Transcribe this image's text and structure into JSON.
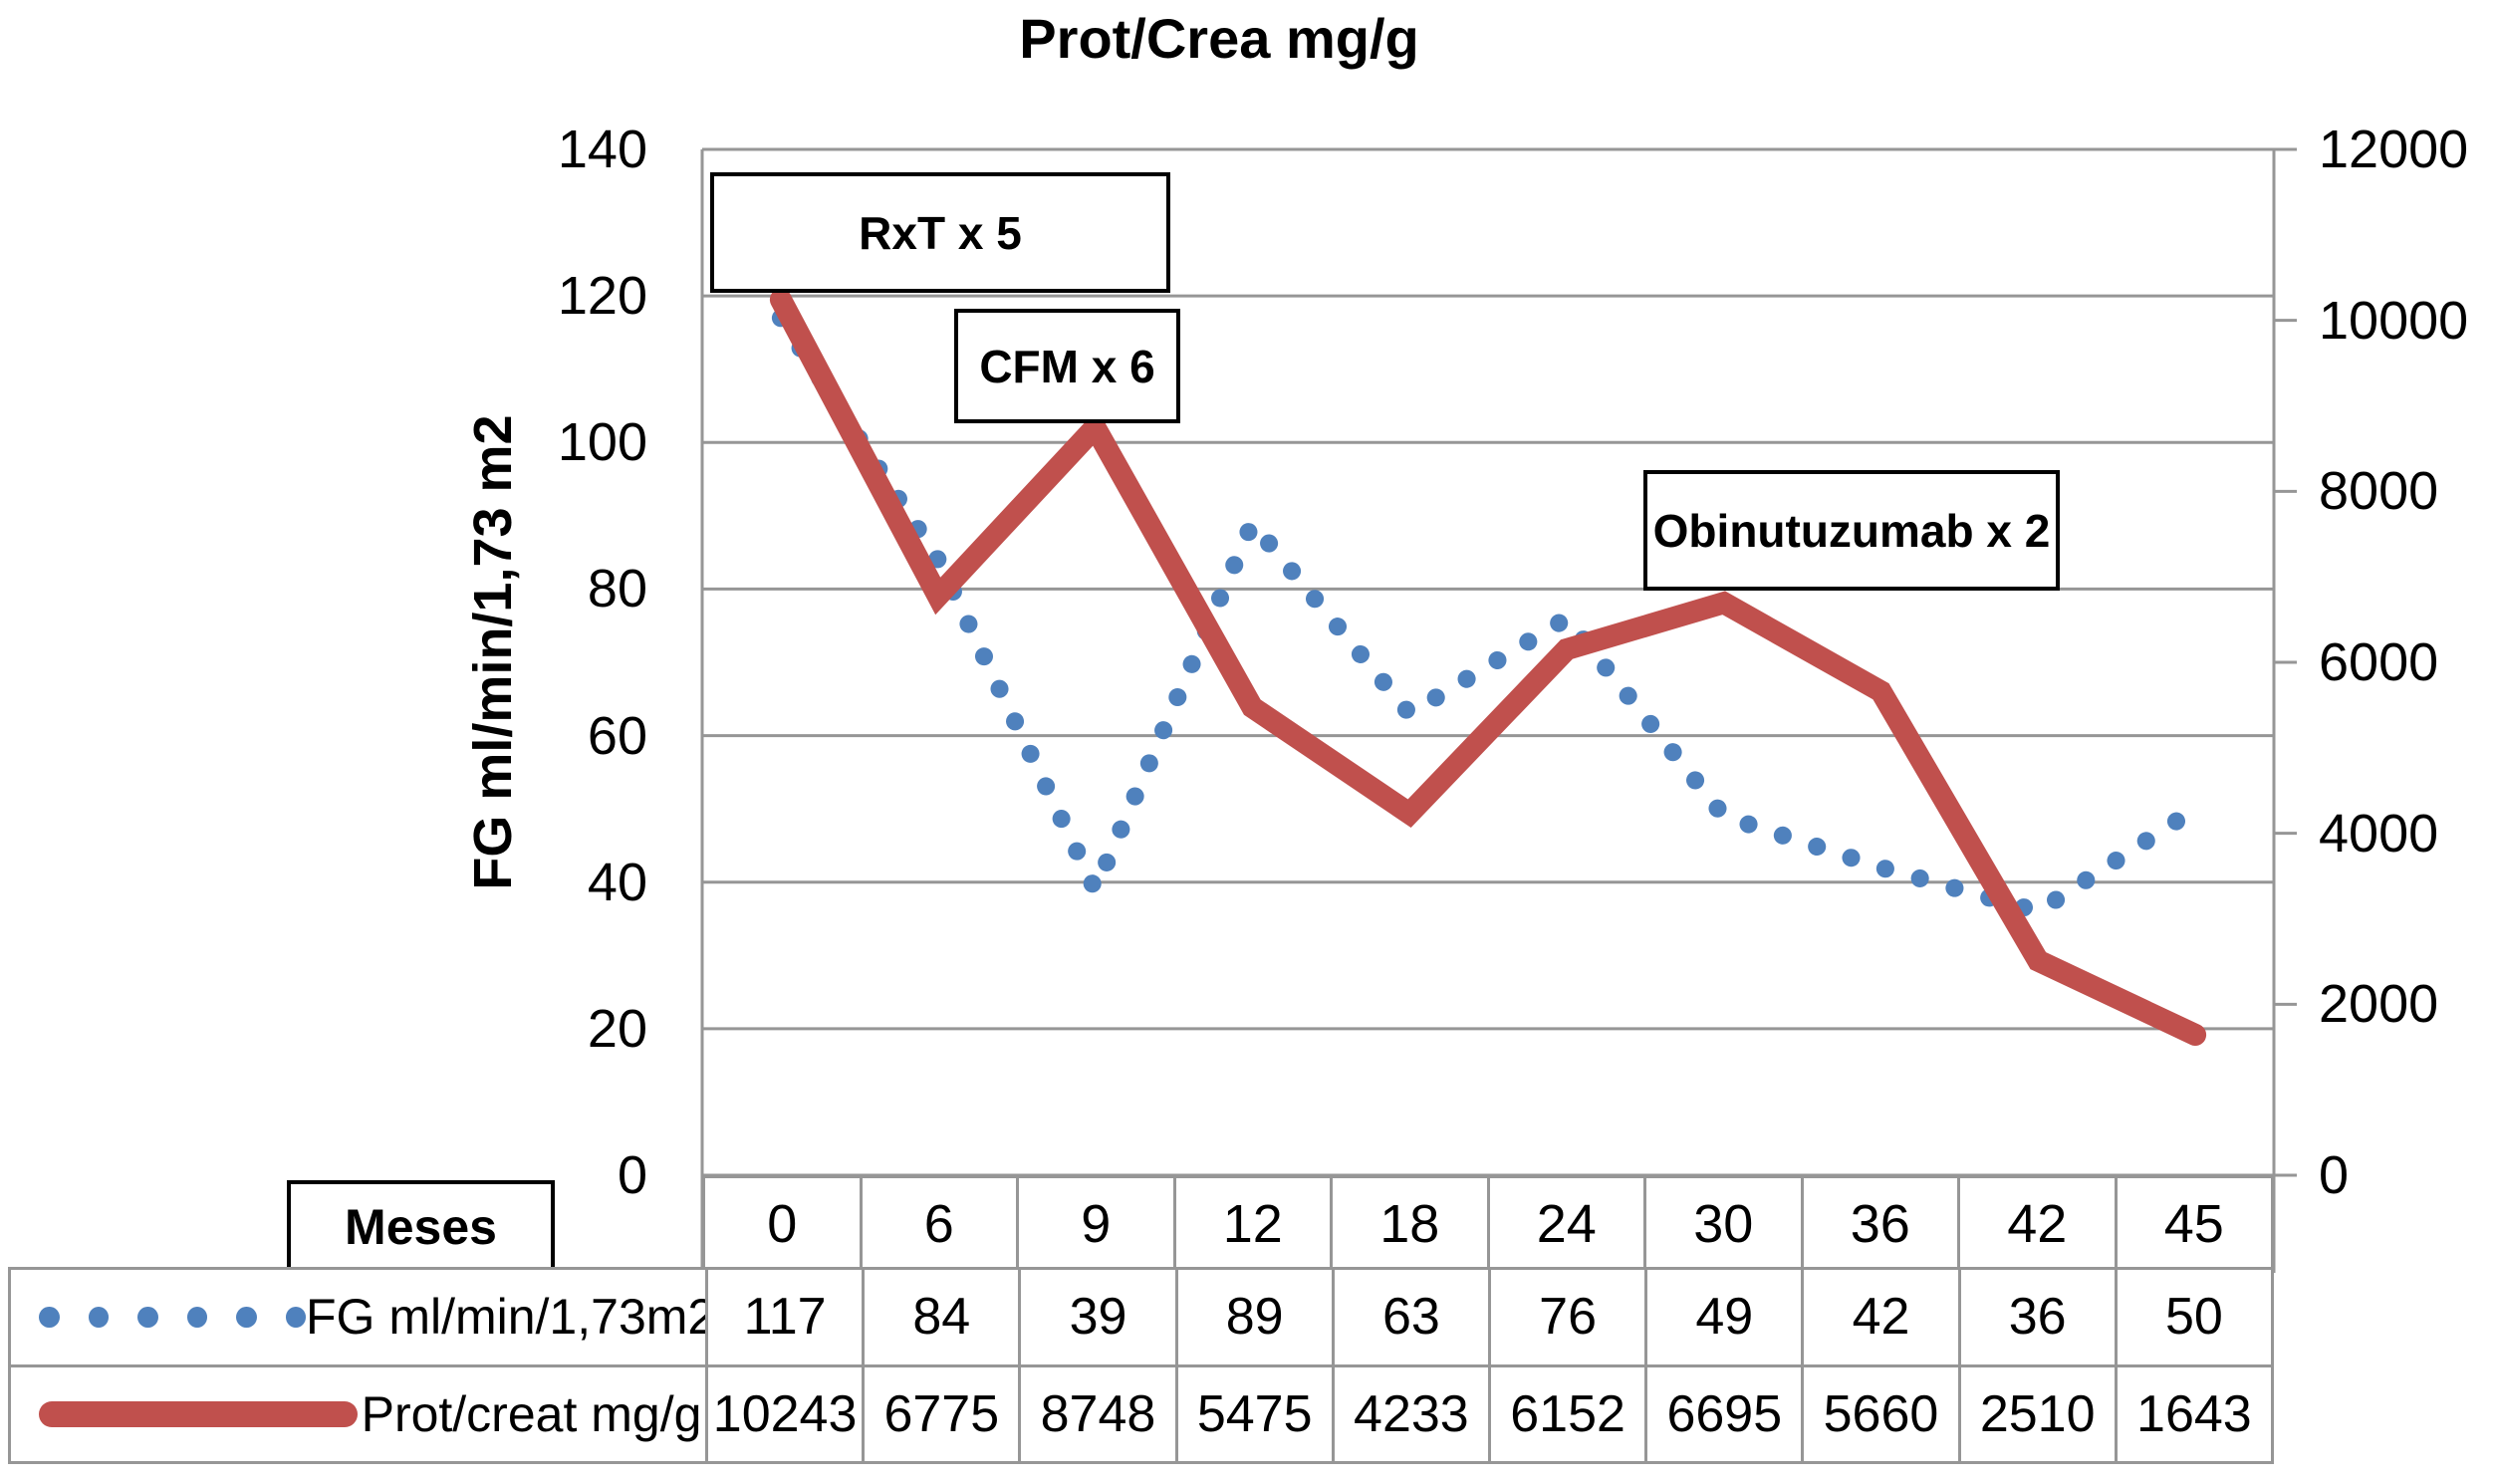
{
  "title": "Prot/Crea mg/g",
  "colors": {
    "fg_series": "#4F81BD",
    "prot_series": "#C0504D",
    "gridline": "#969696",
    "annotation_border": "#000000"
  },
  "chart_data": {
    "type": "line",
    "title": "Prot/Crea mg/g",
    "categories_header": "Meses",
    "categories": [
      0,
      6,
      9,
      12,
      18,
      24,
      30,
      36,
      42,
      45
    ],
    "series": [
      {
        "name": "FG ml/min/1,73m2",
        "axis": "left",
        "style": "dotted",
        "color": "#4F81BD",
        "values": [
          117,
          84,
          39,
          89,
          63,
          76,
          49,
          42,
          36,
          50
        ]
      },
      {
        "name": "Prot/creat mg/g",
        "axis": "right",
        "style": "solid",
        "color": "#C0504D",
        "values": [
          10243,
          6775,
          8748,
          5475,
          4233,
          6152,
          6695,
          5660,
          2510,
          1643
        ]
      }
    ],
    "left_axis": {
      "label": "FG ml/min/1,73 m2",
      "min": 0,
      "max": 140,
      "ticks": [
        0,
        20,
        40,
        60,
        80,
        100,
        120,
        140
      ]
    },
    "right_axis": {
      "label": "",
      "min": 0,
      "max": 12000,
      "ticks": [
        0,
        2000,
        4000,
        6000,
        8000,
        10000,
        12000
      ]
    },
    "annotations": [
      {
        "label": "RxT x 5"
      },
      {
        "label": "CFM x 6"
      },
      {
        "label": "Obinutuzumab x 2"
      }
    ],
    "grid": "horizontal",
    "legend_position": "table-left"
  }
}
